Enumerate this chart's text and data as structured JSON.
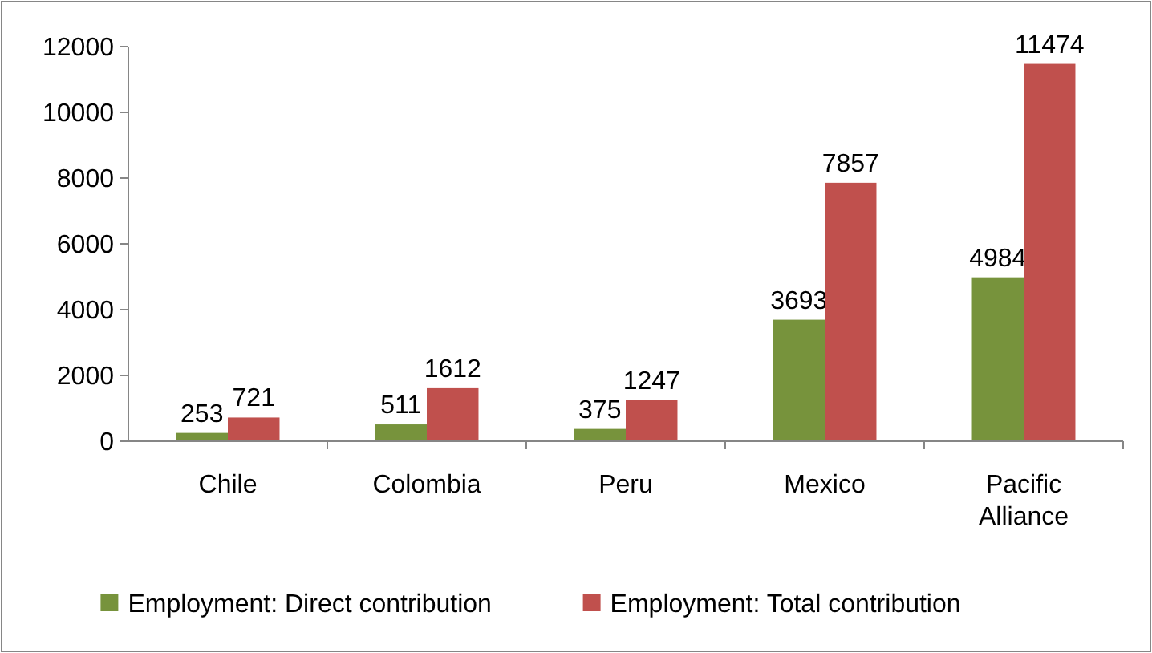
{
  "chart_data": {
    "type": "bar",
    "categories": [
      "Chile",
      "Colombia",
      "Peru",
      "Mexico",
      "Pacific Alliance"
    ],
    "series": [
      {
        "name": "Employment: Direct contribution",
        "color": "#77933c",
        "values": [
          253,
          511,
          375,
          3693,
          4984
        ]
      },
      {
        "name": "Employment: Total contribution",
        "color": "#c0504d",
        "values": [
          721,
          1612,
          1247,
          7857,
          11474
        ]
      }
    ],
    "ylim": [
      0,
      12000
    ],
    "yticks": [
      0,
      2000,
      4000,
      6000,
      8000,
      10000,
      12000
    ],
    "grid": false,
    "legend": "bottom",
    "data_labels": true
  }
}
